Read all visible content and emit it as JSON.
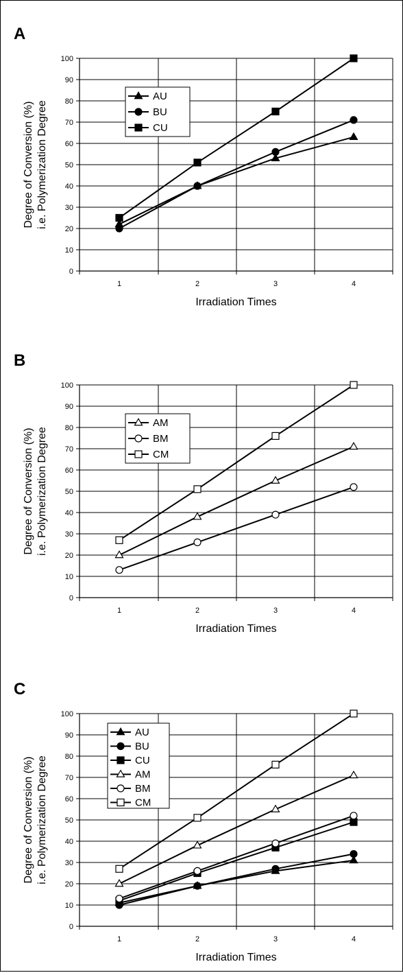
{
  "figure": {
    "border_color": "#000000",
    "series_color": "#000000",
    "marker_fill_open": "#ffffff",
    "grid_color": "#000000"
  },
  "chart_data": [
    {
      "type": "line",
      "panel_label": "A",
      "x": [
        1,
        2,
        3,
        4
      ],
      "x_ticks": [
        "1",
        "2",
        "3",
        "4"
      ],
      "xlabel": "Irradiation Times",
      "ylabel_line1": "Degree of Conversion (%)",
      "ylabel_line2": "i.e. Polymerization Degree",
      "ylim": [
        0,
        100
      ],
      "y_ticks": [
        "0",
        "10",
        "20",
        "30",
        "40",
        "50",
        "60",
        "70",
        "80",
        "90",
        "100"
      ],
      "grid": true,
      "legend_position": "upper-left",
      "series": [
        {
          "name": "AU",
          "marker": "triangle",
          "filled": true,
          "values": [
            22,
            40,
            53,
            63
          ]
        },
        {
          "name": "BU",
          "marker": "circle",
          "filled": true,
          "values": [
            20,
            40,
            56,
            71
          ]
        },
        {
          "name": "CU",
          "marker": "square",
          "filled": true,
          "values": [
            25,
            51,
            75,
            100
          ]
        }
      ]
    },
    {
      "type": "line",
      "panel_label": "B",
      "x": [
        1,
        2,
        3,
        4
      ],
      "x_ticks": [
        "1",
        "2",
        "3",
        "4"
      ],
      "xlabel": "Irradiation Times",
      "ylabel_line1": "Degree of Conversion (%)",
      "ylabel_line2": "i.e. Polymerization Degree",
      "ylim": [
        0,
        100
      ],
      "y_ticks": [
        "0",
        "10",
        "20",
        "30",
        "40",
        "50",
        "60",
        "70",
        "80",
        "90",
        "100"
      ],
      "grid": true,
      "legend_position": "upper-left",
      "series": [
        {
          "name": "AM",
          "marker": "triangle",
          "filled": false,
          "values": [
            20,
            38,
            55,
            71
          ]
        },
        {
          "name": "BM",
          "marker": "circle",
          "filled": false,
          "values": [
            13,
            26,
            39,
            52
          ]
        },
        {
          "name": "CM",
          "marker": "square",
          "filled": false,
          "values": [
            27,
            51,
            76,
            100
          ]
        }
      ]
    },
    {
      "type": "line",
      "panel_label": "C",
      "x": [
        1,
        2,
        3,
        4
      ],
      "x_ticks": [
        "1",
        "2",
        "3",
        "4"
      ],
      "xlabel": "Irradiation Times",
      "ylabel_line1": "Degree of Conversion (%)",
      "ylabel_line2": "i.e. Polymerization Degree",
      "ylim": [
        0,
        100
      ],
      "y_ticks": [
        "0",
        "10",
        "20",
        "30",
        "40",
        "50",
        "60",
        "70",
        "80",
        "90",
        "100"
      ],
      "grid": true,
      "legend_position": "upper-left",
      "series": [
        {
          "name": "AU",
          "marker": "triangle",
          "filled": true,
          "values": [
            11,
            19,
            26,
            31
          ]
        },
        {
          "name": "BU",
          "marker": "circle",
          "filled": true,
          "values": [
            10,
            19,
            27,
            34
          ]
        },
        {
          "name": "CU",
          "marker": "square",
          "filled": true,
          "values": [
            12,
            25,
            37,
            49
          ]
        },
        {
          "name": "AM",
          "marker": "triangle",
          "filled": false,
          "values": [
            20,
            38,
            55,
            71
          ]
        },
        {
          "name": "BM",
          "marker": "circle",
          "filled": false,
          "values": [
            13,
            26,
            39,
            52
          ]
        },
        {
          "name": "CM",
          "marker": "square",
          "filled": false,
          "values": [
            27,
            51,
            76,
            100
          ]
        }
      ]
    }
  ]
}
